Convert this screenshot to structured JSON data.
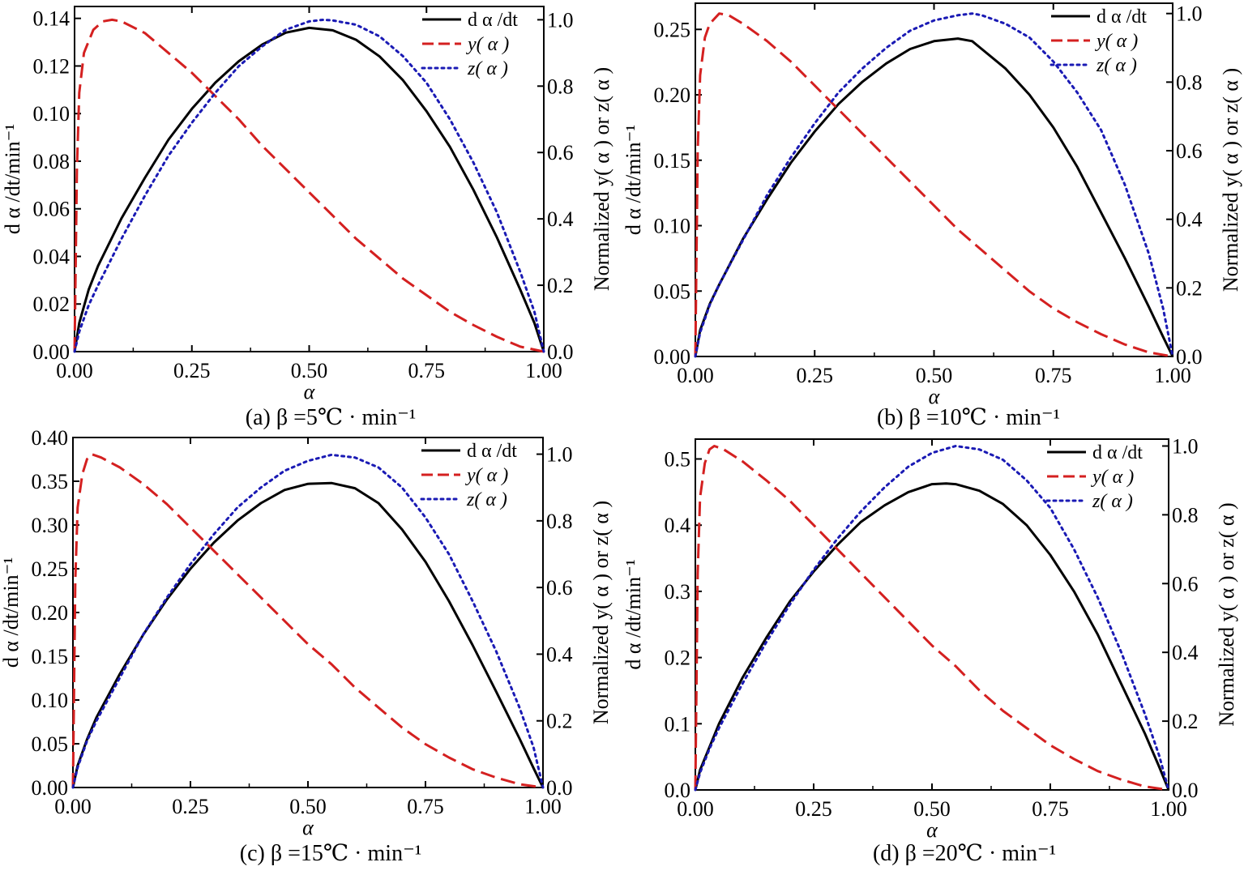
{
  "figure": {
    "colors": {
      "rate": "#000000",
      "y": "#d42020",
      "z": "#1a1ab4"
    },
    "legend": {
      "rate": "d α /dt",
      "y": "y( α )",
      "z": "z( α )"
    }
  },
  "chart_data": [
    {
      "type": "line",
      "caption": "(a)   β =5℃ · min⁻¹",
      "xlabel": "α",
      "ylabel": "d α /dt/min⁻¹",
      "ylabel_right": "Normalized y( α ) or z( α )",
      "xlim": [
        0,
        1
      ],
      "ylim": [
        0,
        0.145
      ],
      "ylim_right": [
        0,
        1.04
      ],
      "xticks": [
        "0.00",
        "0.25",
        "0.50",
        "0.75",
        "1.00"
      ],
      "yticks": [
        "0.00",
        "0.02",
        "0.04",
        "0.06",
        "0.08",
        "0.10",
        "0.12",
        "0.14"
      ],
      "yticks_right": [
        "0.0",
        "0.2",
        "0.4",
        "0.6",
        "0.8",
        "1.0"
      ],
      "legend_position": "top-right",
      "series": [
        {
          "name": "d α /dt",
          "axis": "left",
          "style": "solid",
          "x": [
            0,
            0.01,
            0.03,
            0.05,
            0.1,
            0.15,
            0.2,
            0.25,
            0.3,
            0.35,
            0.4,
            0.45,
            0.5,
            0.55,
            0.6,
            0.65,
            0.7,
            0.75,
            0.8,
            0.85,
            0.9,
            0.95,
            0.98,
            1.0
          ],
          "y": [
            0.0,
            0.012,
            0.026,
            0.036,
            0.056,
            0.073,
            0.089,
            0.102,
            0.113,
            0.122,
            0.129,
            0.134,
            0.136,
            0.135,
            0.131,
            0.124,
            0.114,
            0.101,
            0.086,
            0.068,
            0.048,
            0.026,
            0.012,
            0.0
          ]
        },
        {
          "name": "y( α )",
          "axis": "right",
          "style": "dashed",
          "x": [
            0,
            0.005,
            0.01,
            0.02,
            0.04,
            0.06,
            0.08,
            0.1,
            0.15,
            0.2,
            0.25,
            0.3,
            0.35,
            0.4,
            0.45,
            0.5,
            0.55,
            0.6,
            0.65,
            0.7,
            0.75,
            0.8,
            0.85,
            0.9,
            0.95,
            1.0
          ],
          "y": [
            0.0,
            0.55,
            0.78,
            0.9,
            0.97,
            0.995,
            1.0,
            0.995,
            0.96,
            0.9,
            0.84,
            0.77,
            0.7,
            0.62,
            0.55,
            0.48,
            0.41,
            0.34,
            0.28,
            0.22,
            0.17,
            0.12,
            0.08,
            0.045,
            0.015,
            0.0
          ]
        },
        {
          "name": "z( α )",
          "axis": "right",
          "style": "dotted",
          "x": [
            0,
            0.01,
            0.03,
            0.05,
            0.1,
            0.15,
            0.2,
            0.25,
            0.3,
            0.35,
            0.4,
            0.45,
            0.5,
            0.53,
            0.55,
            0.6,
            0.65,
            0.7,
            0.75,
            0.8,
            0.85,
            0.9,
            0.95,
            0.98,
            1.0
          ],
          "y": [
            0.0,
            0.06,
            0.14,
            0.2,
            0.34,
            0.47,
            0.59,
            0.69,
            0.78,
            0.86,
            0.92,
            0.97,
            0.995,
            1.0,
            0.998,
            0.985,
            0.95,
            0.89,
            0.81,
            0.7,
            0.57,
            0.42,
            0.24,
            0.12,
            0.0
          ]
        }
      ]
    },
    {
      "type": "line",
      "caption": "(b)   β =10℃ · min⁻¹",
      "xlabel": "α",
      "ylabel": "d α /dt/min⁻¹",
      "ylabel_right": "Normalized y( α ) or z( α )",
      "xlim": [
        0,
        1
      ],
      "ylim": [
        0,
        0.27
      ],
      "ylim_right": [
        0,
        1.03
      ],
      "xticks": [
        "0.00",
        "0.25",
        "0.50",
        "0.75",
        "1.00"
      ],
      "yticks": [
        "0.00",
        "0.05",
        "0.10",
        "0.15",
        "0.20",
        "0.25"
      ],
      "yticks_right": [
        "0.0",
        "0.2",
        "0.4",
        "0.6",
        "0.8",
        "1.0"
      ],
      "legend_position": "top-right",
      "series": [
        {
          "name": "d α /dt",
          "axis": "left",
          "style": "solid",
          "x": [
            0,
            0.01,
            0.03,
            0.05,
            0.1,
            0.15,
            0.2,
            0.25,
            0.3,
            0.35,
            0.4,
            0.45,
            0.5,
            0.55,
            0.58,
            0.6,
            0.65,
            0.7,
            0.75,
            0.8,
            0.85,
            0.9,
            0.95,
            0.98,
            1.0
          ],
          "y": [
            0.0,
            0.02,
            0.04,
            0.055,
            0.09,
            0.12,
            0.148,
            0.172,
            0.193,
            0.21,
            0.224,
            0.235,
            0.241,
            0.243,
            0.241,
            0.235,
            0.22,
            0.2,
            0.175,
            0.145,
            0.11,
            0.075,
            0.038,
            0.015,
            0.0
          ]
        },
        {
          "name": "y( α )",
          "axis": "right",
          "style": "dashed",
          "x": [
            0,
            0.005,
            0.01,
            0.02,
            0.03,
            0.05,
            0.07,
            0.1,
            0.15,
            0.2,
            0.25,
            0.3,
            0.35,
            0.4,
            0.45,
            0.5,
            0.55,
            0.6,
            0.65,
            0.7,
            0.75,
            0.8,
            0.85,
            0.9,
            0.95,
            1.0
          ],
          "y": [
            0.0,
            0.6,
            0.82,
            0.93,
            0.97,
            1.0,
            0.995,
            0.97,
            0.92,
            0.86,
            0.79,
            0.72,
            0.65,
            0.58,
            0.51,
            0.44,
            0.37,
            0.31,
            0.25,
            0.19,
            0.14,
            0.1,
            0.065,
            0.035,
            0.012,
            0.0
          ]
        },
        {
          "name": "z( α )",
          "axis": "right",
          "style": "dotted",
          "x": [
            0,
            0.01,
            0.03,
            0.05,
            0.1,
            0.15,
            0.2,
            0.25,
            0.3,
            0.35,
            0.4,
            0.45,
            0.5,
            0.55,
            0.58,
            0.6,
            0.65,
            0.7,
            0.75,
            0.8,
            0.85,
            0.9,
            0.95,
            0.98,
            1.0
          ],
          "y": [
            0.0,
            0.07,
            0.15,
            0.21,
            0.34,
            0.47,
            0.58,
            0.68,
            0.77,
            0.84,
            0.9,
            0.95,
            0.98,
            0.995,
            1.0,
            0.995,
            0.97,
            0.93,
            0.86,
            0.77,
            0.66,
            0.5,
            0.3,
            0.14,
            0.0
          ]
        }
      ]
    },
    {
      "type": "line",
      "caption": "(c)   β =15℃ · min⁻¹",
      "xlabel": "α",
      "ylabel": "d α /dt/min⁻¹",
      "ylabel_right": "Normalized y( α ) or z( α )",
      "xlim": [
        0,
        1
      ],
      "ylim": [
        0,
        0.4
      ],
      "ylim_right": [
        0,
        1.05
      ],
      "xticks": [
        "0.00",
        "0.25",
        "0.50",
        "0.75",
        "1.00"
      ],
      "yticks": [
        "0.00",
        "0.05",
        "0.10",
        "0.15",
        "0.20",
        "0.25",
        "0.30",
        "0.35",
        "0.40"
      ],
      "yticks_right": [
        "0.0",
        "0.2",
        "0.4",
        "0.6",
        "0.8",
        "1.0"
      ],
      "legend_position": "top-right",
      "series": [
        {
          "name": "d α /dt",
          "axis": "left",
          "style": "solid",
          "x": [
            0,
            0.01,
            0.03,
            0.05,
            0.1,
            0.15,
            0.2,
            0.25,
            0.3,
            0.35,
            0.4,
            0.45,
            0.5,
            0.55,
            0.6,
            0.65,
            0.7,
            0.75,
            0.8,
            0.85,
            0.9,
            0.95,
            0.98,
            1.0
          ],
          "y": [
            0.0,
            0.025,
            0.055,
            0.08,
            0.13,
            0.175,
            0.215,
            0.25,
            0.28,
            0.305,
            0.325,
            0.34,
            0.347,
            0.348,
            0.342,
            0.325,
            0.295,
            0.258,
            0.213,
            0.163,
            0.11,
            0.056,
            0.022,
            0.0
          ]
        },
        {
          "name": "y( α )",
          "axis": "right",
          "style": "dashed",
          "x": [
            0,
            0.005,
            0.01,
            0.02,
            0.03,
            0.04,
            0.06,
            0.1,
            0.15,
            0.2,
            0.25,
            0.3,
            0.35,
            0.4,
            0.45,
            0.5,
            0.55,
            0.6,
            0.65,
            0.7,
            0.75,
            0.8,
            0.85,
            0.9,
            0.95,
            1.0
          ],
          "y": [
            0.0,
            0.62,
            0.84,
            0.94,
            0.985,
            1.0,
            0.99,
            0.96,
            0.91,
            0.85,
            0.78,
            0.71,
            0.64,
            0.57,
            0.5,
            0.43,
            0.37,
            0.3,
            0.24,
            0.18,
            0.13,
            0.09,
            0.055,
            0.03,
            0.01,
            0.0
          ]
        },
        {
          "name": "z( α )",
          "axis": "right",
          "style": "dotted",
          "x": [
            0,
            0.01,
            0.03,
            0.05,
            0.1,
            0.15,
            0.2,
            0.25,
            0.3,
            0.35,
            0.4,
            0.45,
            0.5,
            0.55,
            0.6,
            0.65,
            0.7,
            0.75,
            0.8,
            0.85,
            0.9,
            0.95,
            0.98,
            1.0
          ],
          "y": [
            0.0,
            0.06,
            0.14,
            0.2,
            0.33,
            0.46,
            0.57,
            0.67,
            0.76,
            0.84,
            0.9,
            0.95,
            0.98,
            0.998,
            0.99,
            0.96,
            0.9,
            0.81,
            0.7,
            0.56,
            0.41,
            0.24,
            0.12,
            0.0
          ]
        }
      ]
    },
    {
      "type": "line",
      "caption": "(d)   β =20℃ · min⁻¹",
      "xlabel": "α",
      "ylabel": "d α /dt/min⁻¹",
      "ylabel_right": "Normalized y( α ) or z( α )",
      "xlim": [
        0,
        1
      ],
      "ylim": [
        0,
        0.53
      ],
      "ylim_right": [
        0,
        1.02
      ],
      "xticks": [
        "0.00",
        "0.25",
        "0.50",
        "0.75",
        "1.00"
      ],
      "yticks": [
        "0.0",
        "0.1",
        "0.2",
        "0.3",
        "0.4",
        "0.5"
      ],
      "yticks_right": [
        "0.0",
        "0.2",
        "0.4",
        "0.6",
        "0.8",
        "1.0"
      ],
      "legend_position": "top-right",
      "series": [
        {
          "name": "d α /dt",
          "axis": "left",
          "style": "solid",
          "x": [
            0,
            0.01,
            0.03,
            0.05,
            0.1,
            0.15,
            0.2,
            0.25,
            0.3,
            0.35,
            0.4,
            0.45,
            0.5,
            0.53,
            0.55,
            0.6,
            0.65,
            0.7,
            0.75,
            0.8,
            0.85,
            0.9,
            0.95,
            0.98,
            1.0
          ],
          "y": [
            0.0,
            0.03,
            0.065,
            0.1,
            0.17,
            0.23,
            0.285,
            0.33,
            0.37,
            0.405,
            0.43,
            0.45,
            0.462,
            0.463,
            0.462,
            0.452,
            0.432,
            0.4,
            0.355,
            0.3,
            0.235,
            0.16,
            0.085,
            0.035,
            0.0
          ]
        },
        {
          "name": "y( α )",
          "axis": "right",
          "style": "dashed",
          "x": [
            0,
            0.005,
            0.01,
            0.02,
            0.03,
            0.04,
            0.06,
            0.1,
            0.15,
            0.2,
            0.25,
            0.3,
            0.35,
            0.4,
            0.45,
            0.5,
            0.55,
            0.6,
            0.65,
            0.7,
            0.75,
            0.8,
            0.85,
            0.9,
            0.95,
            1.0
          ],
          "y": [
            0.0,
            0.63,
            0.85,
            0.95,
            0.99,
            1.0,
            0.99,
            0.955,
            0.9,
            0.84,
            0.77,
            0.7,
            0.63,
            0.56,
            0.49,
            0.42,
            0.36,
            0.29,
            0.23,
            0.18,
            0.13,
            0.09,
            0.055,
            0.03,
            0.01,
            0.0
          ]
        },
        {
          "name": "z( α )",
          "axis": "right",
          "style": "dotted",
          "x": [
            0,
            0.01,
            0.03,
            0.05,
            0.1,
            0.15,
            0.2,
            0.25,
            0.3,
            0.35,
            0.4,
            0.45,
            0.5,
            0.55,
            0.6,
            0.65,
            0.7,
            0.75,
            0.8,
            0.85,
            0.9,
            0.95,
            0.98,
            1.0
          ],
          "y": [
            0.0,
            0.05,
            0.12,
            0.18,
            0.31,
            0.43,
            0.54,
            0.64,
            0.73,
            0.81,
            0.88,
            0.94,
            0.98,
            1.0,
            0.99,
            0.96,
            0.9,
            0.82,
            0.7,
            0.56,
            0.4,
            0.22,
            0.1,
            0.0
          ]
        }
      ]
    }
  ]
}
